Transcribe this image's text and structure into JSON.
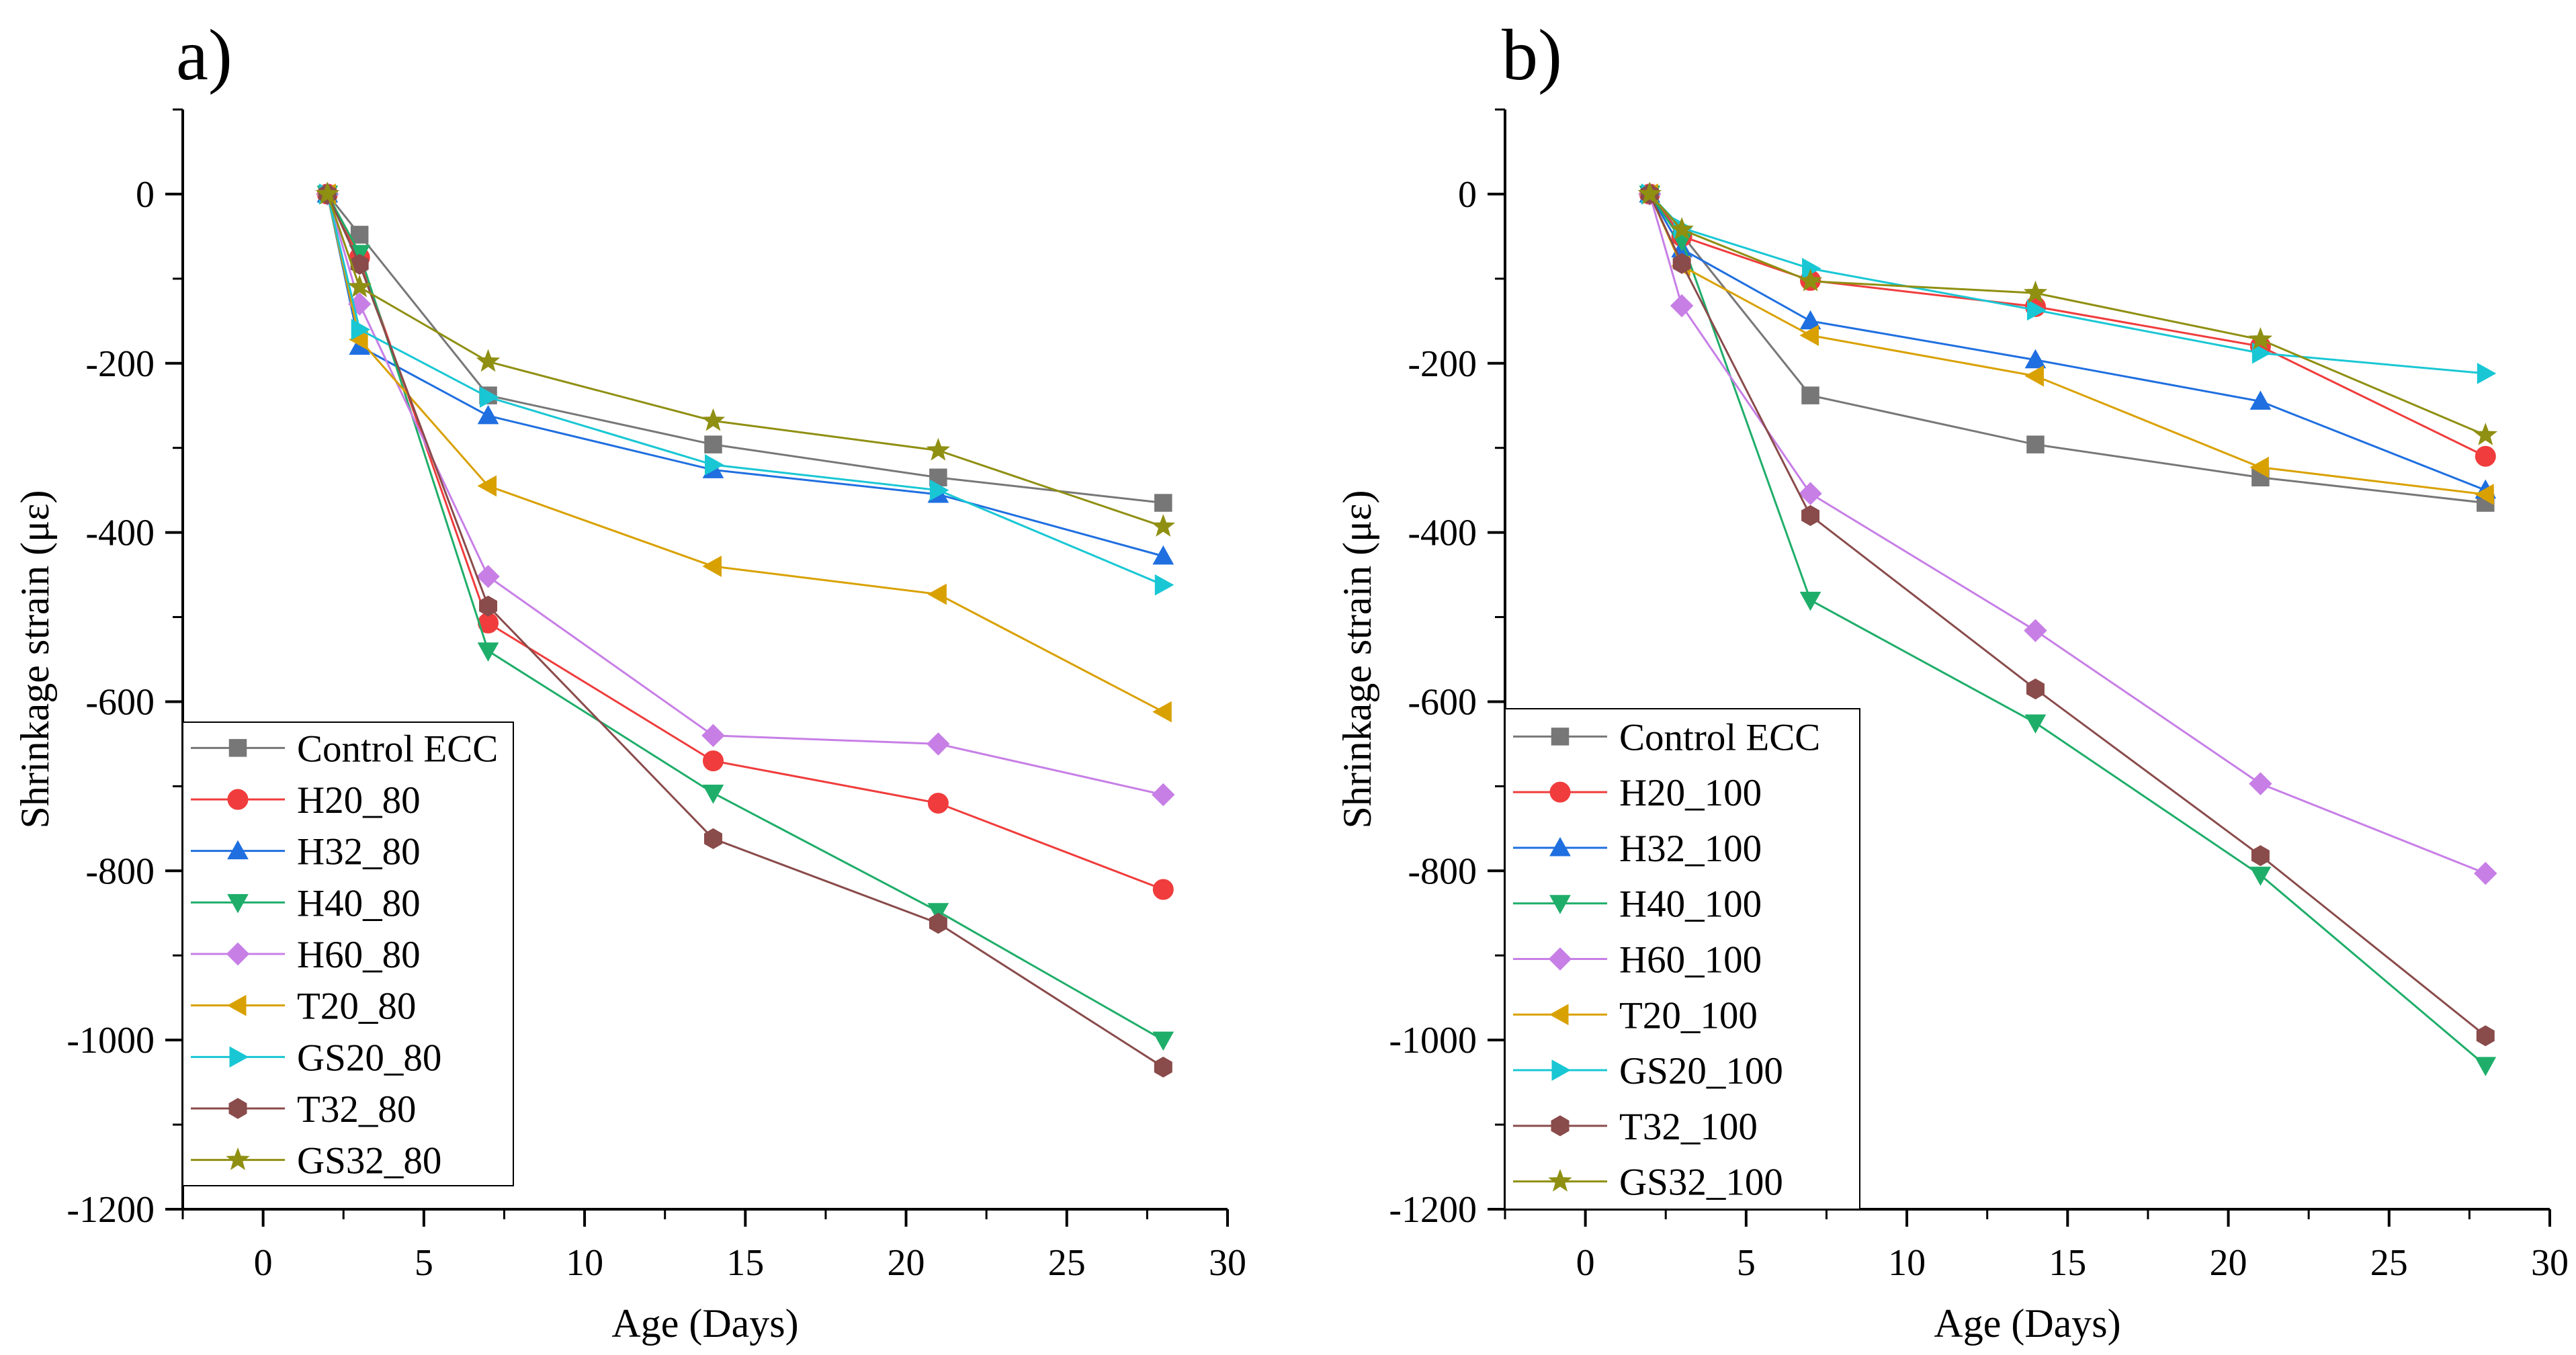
{
  "chart_data": [
    {
      "panel_label": "a)",
      "type": "line",
      "xlabel": "Age (Days)",
      "ylabel": "Shrinkage strain (με)",
      "xlim": [
        -2.5,
        30
      ],
      "ylim": [
        -1200,
        100
      ],
      "xticks": [
        0,
        5,
        10,
        15,
        20,
        25,
        30
      ],
      "yticks": [
        0,
        -200,
        -400,
        -600,
        -800,
        -1000,
        -1200
      ],
      "tick_labels_x": [
        "0",
        "5",
        "10",
        "15",
        "20",
        "25",
        "30"
      ],
      "tick_labels_y": [
        "0",
        "-200",
        "-400",
        "-600",
        "-800",
        "-1000",
        "-1200"
      ],
      "legend_position": "bottom-left",
      "x": [
        2,
        3,
        7,
        14,
        21,
        28
      ],
      "series": [
        {
          "name": "Control ECC",
          "color": "#777777",
          "marker": "square",
          "values": [
            0,
            -48,
            -238,
            -296,
            -335,
            -365
          ]
        },
        {
          "name": "H20_80",
          "color": "#f03c3c",
          "marker": "circle",
          "values": [
            0,
            -75,
            -507,
            -670,
            -720,
            -822
          ]
        },
        {
          "name": "H32_80",
          "color": "#1f6fe0",
          "marker": "triangle-up",
          "values": [
            0,
            -180,
            -262,
            -326,
            -355,
            -428
          ]
        },
        {
          "name": "H40_80",
          "color": "#1fae6a",
          "marker": "triangle-down",
          "values": [
            0,
            -70,
            -540,
            -708,
            -848,
            -1000
          ]
        },
        {
          "name": "H60_80",
          "color": "#c77fe6",
          "marker": "diamond",
          "values": [
            0,
            -130,
            -452,
            -640,
            -650,
            -710
          ]
        },
        {
          "name": "T20_80",
          "color": "#d9a100",
          "marker": "triangle-left",
          "values": [
            0,
            -172,
            -345,
            -440,
            -473,
            -612
          ]
        },
        {
          "name": "GS20_80",
          "color": "#19c7d4",
          "marker": "triangle-right",
          "values": [
            0,
            -160,
            -240,
            -320,
            -350,
            -462
          ]
        },
        {
          "name": "T32_80",
          "color": "#8a4b4b",
          "marker": "hexagon",
          "values": [
            0,
            -83,
            -487,
            -762,
            -862,
            -1032
          ]
        },
        {
          "name": "GS32_80",
          "color": "#8f8f12",
          "marker": "star",
          "values": [
            0,
            -110,
            -198,
            -268,
            -303,
            -393
          ]
        }
      ]
    },
    {
      "panel_label": "b)",
      "type": "line",
      "xlabel": "Age (Days)",
      "ylabel": "Shrinkage strain (με)",
      "xlim": [
        -2.5,
        30
      ],
      "ylim": [
        -1200,
        100
      ],
      "xticks": [
        0,
        5,
        10,
        15,
        20,
        25,
        30
      ],
      "yticks": [
        0,
        -200,
        -400,
        -600,
        -800,
        -1000,
        -1200
      ],
      "tick_labels_x": [
        "0",
        "5",
        "10",
        "15",
        "20",
        "25",
        "30"
      ],
      "tick_labels_y": [
        "0",
        "-200",
        "-400",
        "-600",
        "-800",
        "-1000",
        "-1200"
      ],
      "legend_position": "bottom-left",
      "x": [
        2,
        3,
        7,
        14,
        21,
        28
      ],
      "series": [
        {
          "name": "Control ECC",
          "color": "#777777",
          "marker": "square",
          "values": [
            0,
            -48,
            -238,
            -296,
            -335,
            -365
          ]
        },
        {
          "name": "H20_100",
          "color": "#f03c3c",
          "marker": "circle",
          "values": [
            0,
            -50,
            -102,
            -133,
            -180,
            -310
          ]
        },
        {
          "name": "H32_100",
          "color": "#1f6fe0",
          "marker": "triangle-up",
          "values": [
            0,
            -65,
            -150,
            -196,
            -245,
            -350
          ]
        },
        {
          "name": "H40_100",
          "color": "#1fae6a",
          "marker": "triangle-down",
          "values": [
            0,
            -55,
            -480,
            -625,
            -805,
            -1030
          ]
        },
        {
          "name": "H60_100",
          "color": "#c77fe6",
          "marker": "diamond",
          "values": [
            0,
            -132,
            -354,
            -516,
            -697,
            -803
          ]
        },
        {
          "name": "T20_100",
          "color": "#d9a100",
          "marker": "triangle-left",
          "values": [
            0,
            -85,
            -167,
            -215,
            -323,
            -355
          ]
        },
        {
          "name": "GS20_100",
          "color": "#19c7d4",
          "marker": "triangle-right",
          "values": [
            0,
            -40,
            -88,
            -137,
            -188,
            -212
          ]
        },
        {
          "name": "T32_100",
          "color": "#8a4b4b",
          "marker": "hexagon",
          "values": [
            0,
            -82,
            -380,
            -585,
            -782,
            -995
          ]
        },
        {
          "name": "GS32_100",
          "color": "#8f8f12",
          "marker": "star",
          "values": [
            0,
            -42,
            -103,
            -117,
            -172,
            -285
          ]
        }
      ]
    }
  ]
}
